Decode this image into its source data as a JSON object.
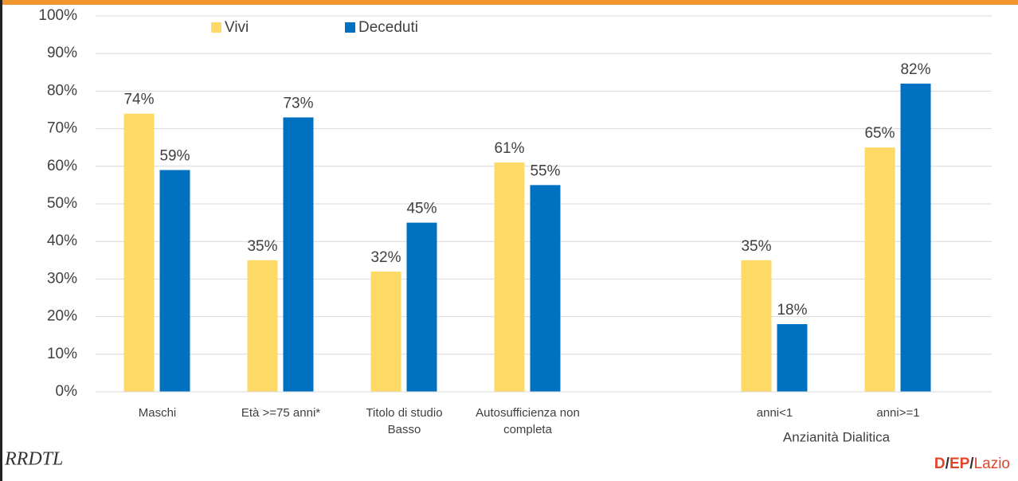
{
  "chart_data": {
    "type": "bar",
    "categories": [
      "Maschi",
      "Età >=75 anni*",
      "Titolo di studio Basso",
      "Autosufficienza non completa",
      null,
      "anni<1",
      "anni>=1"
    ],
    "series": [
      {
        "name": "Vivi",
        "color": "#FFD966",
        "values": [
          74,
          35,
          32,
          61,
          null,
          35,
          65
        ],
        "value_labels": [
          "74%",
          "35%",
          "32%",
          "61%",
          null,
          "35%",
          "65%"
        ]
      },
      {
        "name": "Deceduti",
        "color": "#0070C0",
        "values": [
          59,
          73,
          45,
          55,
          null,
          18,
          82
        ],
        "value_labels": [
          "59%",
          "73%",
          "45%",
          "55%",
          null,
          "18%",
          "82%"
        ]
      }
    ],
    "ylim": [
      0,
      100
    ],
    "yticks": [
      {
        "value": 0,
        "label": "0%"
      },
      {
        "value": 10,
        "label": "10%"
      },
      {
        "value": 20,
        "label": "20%"
      },
      {
        "value": 30,
        "label": "30%"
      },
      {
        "value": 40,
        "label": "40%"
      },
      {
        "value": 50,
        "label": "50%"
      },
      {
        "value": 60,
        "label": "60%"
      },
      {
        "value": 70,
        "label": "70%"
      },
      {
        "value": 80,
        "label": "80%"
      },
      {
        "value": 90,
        "label": "90%"
      },
      {
        "value": 100,
        "label": "100%"
      }
    ],
    "grid": true,
    "group_label": "Anzianità Dialitica",
    "legend": "top-left"
  },
  "logos": {
    "left": "RRDTL",
    "right": [
      "D",
      "EP",
      "Lazio"
    ]
  }
}
